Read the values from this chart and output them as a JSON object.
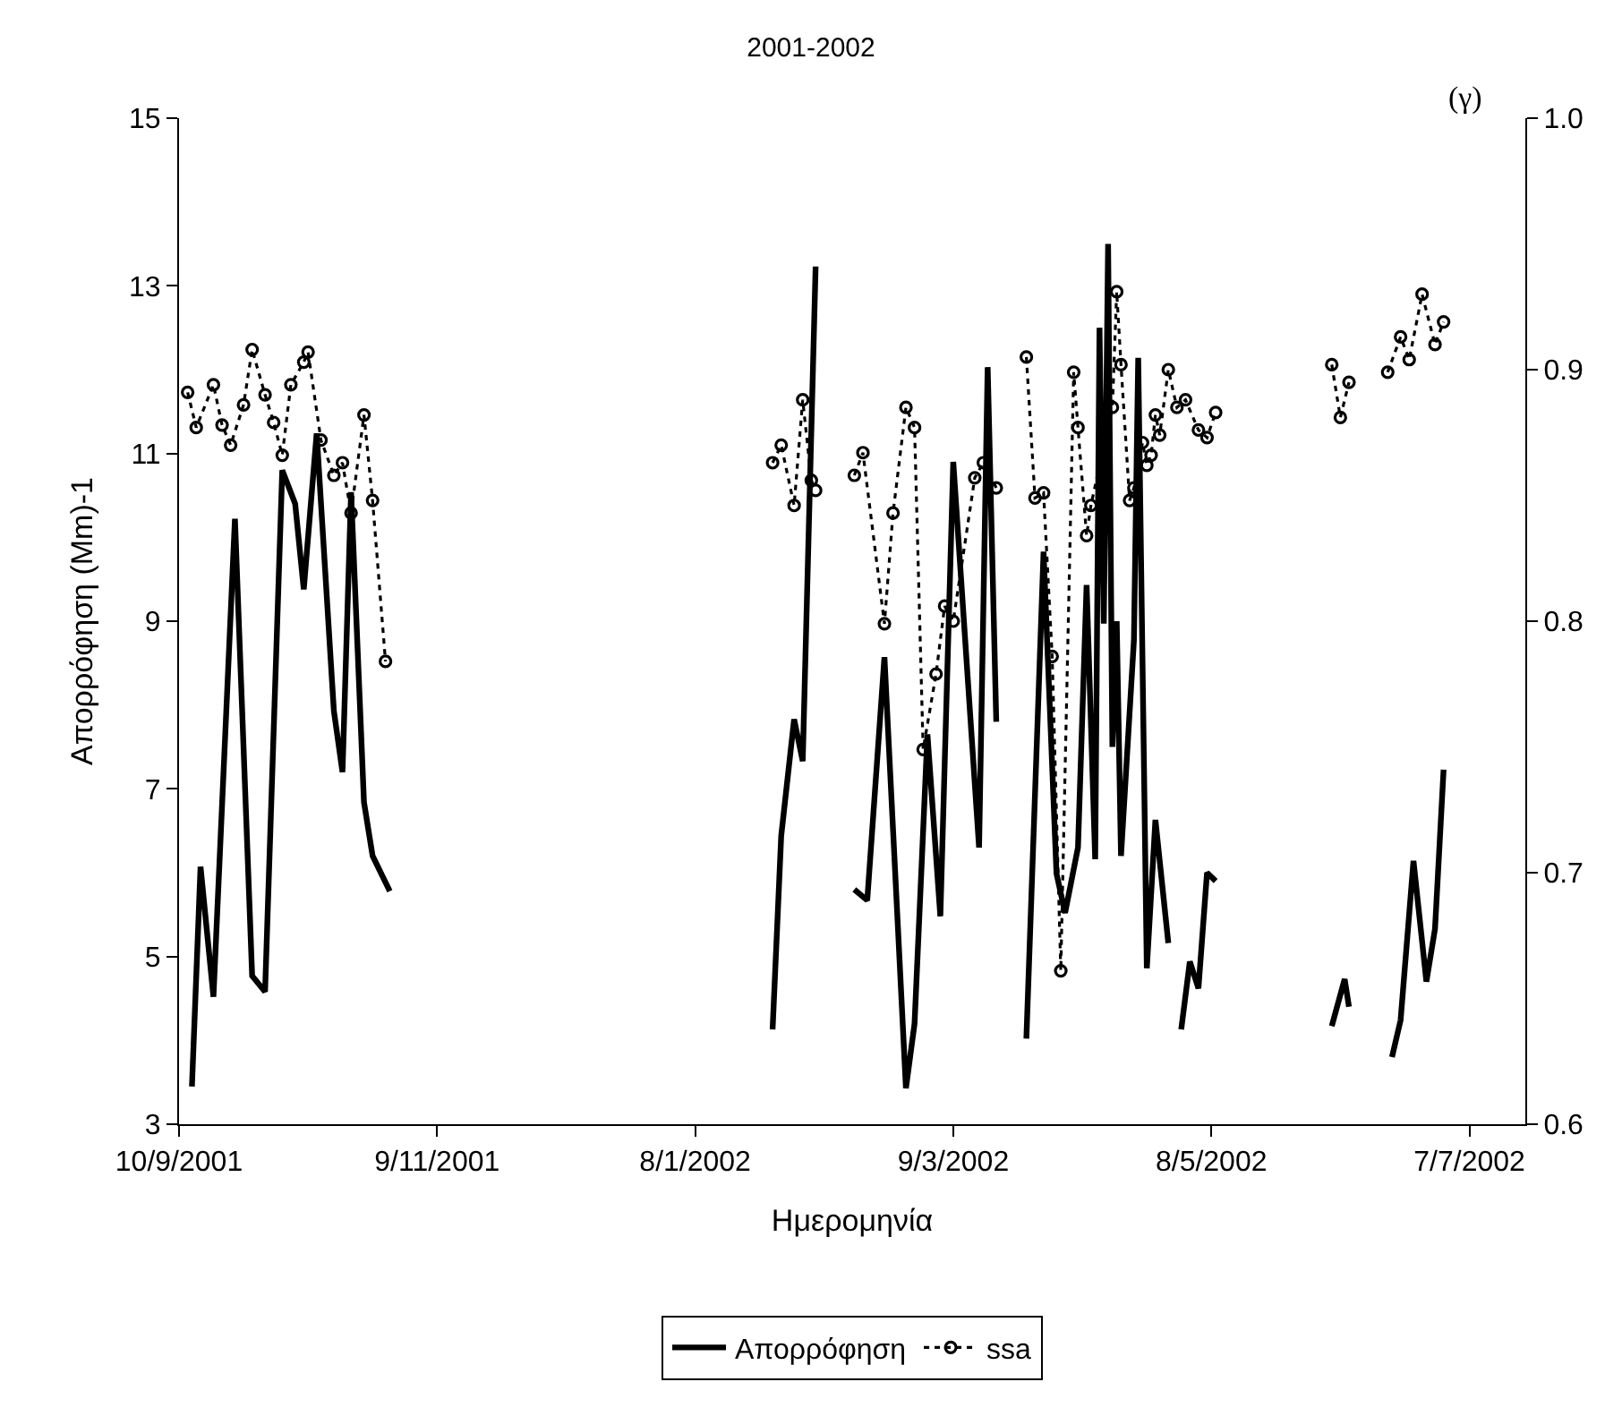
{
  "chart_data": {
    "type": "line",
    "title": "2001-2002",
    "xlabel": "Ημερομηνία",
    "ylabel": "Απορρόφηση (Mm)-1",
    "annotations": [
      "(γ)"
    ],
    "xlim": [
      "2001-09-10",
      "2002-07-20"
    ],
    "xticks": [
      {
        "value": "2001-09-10",
        "label": "10/9/2001"
      },
      {
        "value": "2001-11-09",
        "label": "9/11/2001"
      },
      {
        "value": "2002-01-08",
        "label": "8/1/2002"
      },
      {
        "value": "2002-03-09",
        "label": "9/3/2002"
      },
      {
        "value": "2002-05-08",
        "label": "8/5/2002"
      },
      {
        "value": "2002-07-07",
        "label": "7/7/2002"
      }
    ],
    "ylim": [
      3,
      15
    ],
    "yticks": [
      3,
      5,
      7,
      9,
      11,
      13,
      15
    ],
    "y2lim": [
      0.6,
      1.0
    ],
    "y2ticks": [
      0.6,
      0.7,
      0.8,
      0.9,
      {
        "value": 1,
        "label": "1.0"
      }
    ],
    "grid": false,
    "legend": "bottom",
    "series": [
      {
        "name": "Απορρόφηση",
        "color": "#000000",
        "marker": "none",
        "line_style": "solid",
        "x": [
          "2001-09-13",
          "2001-09-15",
          "2001-09-18",
          "2001-09-23",
          "2001-09-27",
          "2001-09-30",
          "2001-10-04",
          "2001-10-07",
          "2001-10-09",
          "2001-10-12",
          "2001-10-16",
          "2001-10-18",
          "2001-10-20",
          "2001-10-23",
          "2001-10-25",
          "2001-10-29",
          "2001-11-15",
          "2002-01-26",
          "2002-01-28",
          "2002-01-31",
          "2002-02-02",
          "2002-02-05",
          "2002-02-10",
          "2002-02-14",
          "2002-02-17",
          "2002-02-21",
          "2002-02-26",
          "2002-02-28",
          "2002-03-03",
          "2002-03-06",
          "2002-03-09",
          "2002-03-15",
          "2002-03-17",
          "2002-03-19",
          "2002-03-22",
          "2002-03-26",
          "2002-03-30",
          "2002-04-02",
          "2002-04-04",
          "2002-04-07",
          "2002-04-09",
          "2002-04-11",
          "2002-04-12",
          "2002-04-13",
          "2002-04-14",
          "2002-04-15",
          "2002-04-16",
          "2002-04-17",
          "2002-04-20",
          "2002-04-21",
          "2002-04-23",
          "2002-04-25",
          "2002-04-28",
          "2002-04-30",
          "2002-05-01",
          "2002-05-03",
          "2002-05-05",
          "2002-05-07",
          "2002-05-09",
          "2002-05-20",
          "2002-06-05",
          "2002-06-08",
          "2002-06-09",
          "2002-06-14",
          "2002-06-19",
          "2002-06-21",
          "2002-06-24",
          "2002-06-27",
          "2002-06-29",
          "2002-07-01"
        ],
        "values": [
          3.45,
          6.07,
          4.52,
          10.22,
          4.77,
          4.58,
          10.8,
          10.4,
          9.38,
          11.24,
          7.93,
          7.2,
          10.54,
          6.84,
          6.2,
          5.78,
          null,
          4.13,
          6.44,
          7.83,
          7.33,
          13.23,
          null,
          5.8,
          5.67,
          8.57,
          3.43,
          4.2,
          7.65,
          5.48,
          10.9,
          6.3,
          12.03,
          7.8,
          null,
          4.02,
          9.83,
          5.99,
          5.52,
          6.3,
          9.43,
          6.16,
          12.5,
          8.97,
          13.5,
          7.5,
          9.0,
          6.2,
          8.77,
          12.14,
          4.86,
          6.63,
          5.16,
          null,
          4.13,
          4.94,
          4.62,
          6.0,
          5.9,
          null,
          4.17,
          4.73,
          4.4,
          null,
          3.8,
          4.24,
          6.14,
          4.7,
          5.33,
          7.23
        ]
      },
      {
        "name": "ssa",
        "color": "#000000",
        "marker": "circle",
        "line_style": "dotted",
        "axis": "y2",
        "x": [
          "2001-09-12",
          "2001-09-14",
          "2001-09-18",
          "2001-09-20",
          "2001-09-22",
          "2001-09-25",
          "2001-09-27",
          "2001-09-30",
          "2001-10-02",
          "2001-10-04",
          "2001-10-06",
          "2001-10-09",
          "2001-10-10",
          "2001-10-13",
          "2001-10-16",
          "2001-10-18",
          "2001-10-20",
          "2001-10-23",
          "2001-10-25",
          "2001-10-28",
          "2001-11-15",
          "2002-01-26",
          "2002-01-28",
          "2002-01-31",
          "2002-02-02",
          "2002-02-04",
          "2002-02-05",
          "2002-02-10",
          "2002-02-14",
          "2002-02-16",
          "2002-02-21",
          "2002-02-23",
          "2002-02-26",
          "2002-02-28",
          "2002-03-02",
          "2002-03-05",
          "2002-03-07",
          "2002-03-09",
          "2002-03-14",
          "2002-03-16",
          "2002-03-19",
          "2002-03-22",
          "2002-03-26",
          "2002-03-28",
          "2002-03-30",
          "2002-04-01",
          "2002-04-03",
          "2002-04-06",
          "2002-04-07",
          "2002-04-09",
          "2002-04-10",
          "2002-04-15",
          "2002-04-16",
          "2002-04-17",
          "2002-04-19",
          "2002-04-20",
          "2002-04-22",
          "2002-04-23",
          "2002-04-24",
          "2002-04-25",
          "2002-04-26",
          "2002-04-28",
          "2002-04-30",
          "2002-05-02",
          "2002-05-05",
          "2002-05-07",
          "2002-05-09",
          "2002-05-20",
          "2002-06-05",
          "2002-06-07",
          "2002-06-09",
          "2002-06-14",
          "2002-06-18",
          "2002-06-21",
          "2002-06-23",
          "2002-06-26",
          "2002-06-29",
          "2002-07-01"
        ],
        "values": [
          0.891,
          0.877,
          0.894,
          0.878,
          0.87,
          0.886,
          0.908,
          0.89,
          0.879,
          0.866,
          0.894,
          0.903,
          0.907,
          0.872,
          0.858,
          0.863,
          0.843,
          0.882,
          0.848,
          0.784,
          null,
          0.863,
          0.87,
          0.846,
          0.888,
          0.856,
          0.852,
          null,
          0.858,
          0.867,
          0.799,
          0.843,
          0.885,
          0.877,
          0.749,
          0.779,
          0.806,
          0.8,
          0.857,
          0.863,
          0.853,
          null,
          0.905,
          0.849,
          0.851,
          0.786,
          0.661,
          0.899,
          0.877,
          0.834,
          0.846,
          0.885,
          0.931,
          0.902,
          0.848,
          0.853,
          0.871,
          0.862,
          0.866,
          0.882,
          0.874,
          0.9,
          0.885,
          0.888,
          0.876,
          0.873,
          0.883,
          null,
          0.902,
          0.881,
          0.895,
          null,
          0.899,
          0.913,
          0.904,
          0.93,
          0.91,
          0.919
        ]
      }
    ]
  }
}
